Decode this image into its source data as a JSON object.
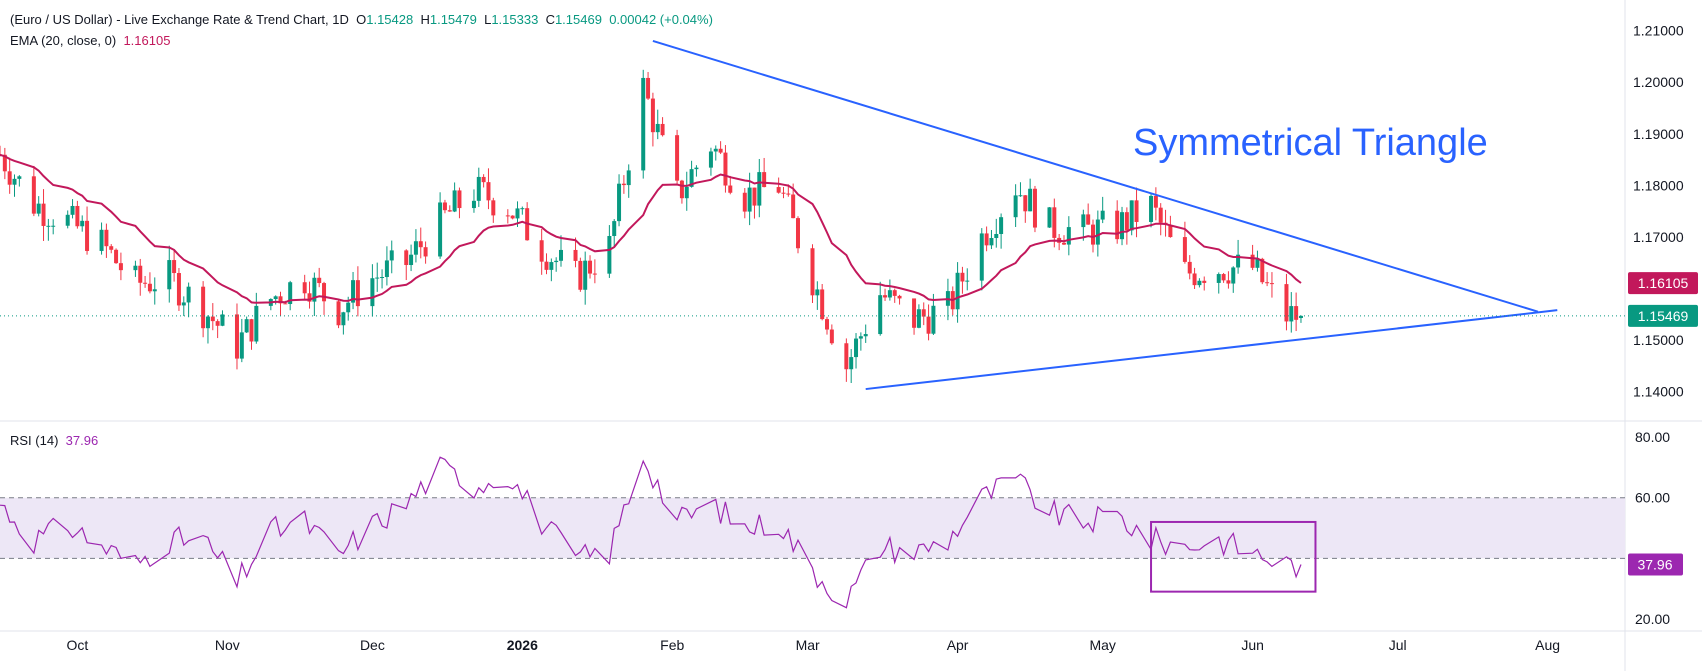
{
  "legend": {
    "symbol": "(Euro / US Dollar) - Live Exchange Rate & Trend Chart, 1D",
    "o_label": "O",
    "o_value": "1.15428",
    "h_label": "H",
    "h_value": "1.15479",
    "l_label": "L",
    "l_value": "1.15333",
    "c_label": "C",
    "c_value": "1.15469",
    "change": "0.00042 (+0.04%)",
    "ema_label": "EMA (20, close, 0)",
    "ema_value": "1.16105",
    "rsi_label": "RSI (14)",
    "rsi_value": "37.96"
  },
  "annotation": "Symmetrical Triangle",
  "badges": {
    "ema": "1.16105",
    "last": "1.15469",
    "rsi": "37.96"
  },
  "colors": {
    "up": "#089981",
    "down": "#f23645",
    "ema": "#c2185b",
    "trendline": "#2962ff",
    "rsi": "#9c27b0",
    "rsi_band": "#ede7f6",
    "grid": "#e0e3eb",
    "text": "#131722"
  },
  "chart_data": [
    {
      "type": "candlestick",
      "y_ticks": [
        "1.21000",
        "1.20000",
        "1.19000",
        "1.18000",
        "1.17000",
        "1.16000",
        "1.15000",
        "1.14000"
      ],
      "ylim": [
        1.1345,
        1.214
      ],
      "x_ticks": [
        {
          "label": "Oct",
          "date": "2025-10-01"
        },
        {
          "label": "Nov",
          "date": "2025-11-01"
        },
        {
          "label": "Dec",
          "date": "2025-12-01"
        },
        {
          "label": "2026",
          "date": "2026-01-01",
          "bold": true
        },
        {
          "label": "Feb",
          "date": "2026-02-01"
        },
        {
          "label": "Mar",
          "date": "2026-03-01"
        },
        {
          "label": "Apr",
          "date": "2026-04-01"
        },
        {
          "label": "May",
          "date": "2026-05-01"
        },
        {
          "label": "Jun",
          "date": "2026-06-01"
        },
        {
          "label": "Jul",
          "date": "2026-07-01"
        },
        {
          "label": "Aug",
          "date": "2026-08-01"
        }
      ],
      "xlim": [
        "2025-09-15",
        "2026-08-17"
      ],
      "trendlines": [
        {
          "name": "upper",
          "points": [
            [
              "2026-01-28",
              1.208
            ],
            [
              "2026-07-30",
              1.1555
            ]
          ]
        },
        {
          "name": "lower",
          "points": [
            [
              "2026-03-13",
              1.1405
            ],
            [
              "2026-08-03",
              1.1558
            ]
          ]
        }
      ],
      "last_price": 1.15469,
      "ema_last": 1.16105,
      "close_series": [
        [
          "2025-09-15",
          1.186
        ],
        [
          "2025-09-22",
          1.1765
        ],
        [
          "2025-09-29",
          1.173
        ],
        [
          "2025-10-06",
          1.1685
        ],
        [
          "2025-10-13",
          1.161
        ],
        [
          "2025-10-20",
          1.162
        ],
        [
          "2025-10-27",
          1.156
        ],
        [
          "2025-11-03",
          1.149
        ],
        [
          "2025-11-10",
          1.158
        ],
        [
          "2025-11-17",
          1.162
        ],
        [
          "2025-11-24",
          1.156
        ],
        [
          "2025-12-01",
          1.162
        ],
        [
          "2025-12-08",
          1.165
        ],
        [
          "2025-12-15",
          1.173
        ],
        [
          "2025-12-22",
          1.179
        ],
        [
          "2025-12-29",
          1.176
        ],
        [
          "2026-01-05",
          1.168
        ],
        [
          "2026-01-12",
          1.162
        ],
        [
          "2026-01-19",
          1.168
        ],
        [
          "2026-01-26",
          1.199
        ],
        [
          "2026-02-02",
          1.178
        ],
        [
          "2026-02-09",
          1.188
        ],
        [
          "2026-02-16",
          1.178
        ],
        [
          "2026-02-23",
          1.18
        ],
        [
          "2026-03-02",
          1.162
        ],
        [
          "2026-03-09",
          1.145
        ],
        [
          "2026-03-16",
          1.159
        ],
        [
          "2026-03-23",
          1.154
        ],
        [
          "2026-03-30",
          1.156
        ],
        [
          "2026-04-06",
          1.17
        ],
        [
          "2026-04-13",
          1.18
        ],
        [
          "2026-04-20",
          1.172
        ],
        [
          "2026-04-27",
          1.171
        ],
        [
          "2026-05-04",
          1.172
        ],
        [
          "2026-05-11",
          1.176
        ],
        [
          "2026-05-18",
          1.163
        ],
        [
          "2026-05-25",
          1.164
        ],
        [
          "2026-06-01",
          1.164
        ],
        [
          "2026-06-08",
          1.1547
        ]
      ]
    },
    {
      "type": "line",
      "title": "RSI (14)",
      "y_ticks": [
        "80.00",
        "60.00",
        "20.00"
      ],
      "ylim": [
        17,
        84
      ],
      "band": [
        40,
        60
      ],
      "last": 37.96,
      "highlight_box": {
        "x": [
          "2026-05-11",
          "2026-06-14"
        ],
        "y": [
          29,
          52
        ]
      },
      "series": [
        [
          "2025-09-15",
          58
        ],
        [
          "2025-09-22",
          46
        ],
        [
          "2025-09-29",
          51
        ],
        [
          "2025-10-06",
          44
        ],
        [
          "2025-10-13",
          38
        ],
        [
          "2025-10-20",
          46
        ],
        [
          "2025-10-27",
          46
        ],
        [
          "2025-11-03",
          32
        ],
        [
          "2025-11-10",
          49
        ],
        [
          "2025-11-17",
          52
        ],
        [
          "2025-11-24",
          41
        ],
        [
          "2025-12-01",
          51
        ],
        [
          "2025-12-08",
          58
        ],
        [
          "2025-12-15",
          70
        ],
        [
          "2025-12-22",
          64
        ],
        [
          "2025-12-29",
          68
        ],
        [
          "2026-01-05",
          52
        ],
        [
          "2026-01-12",
          40
        ],
        [
          "2026-01-19",
          42
        ],
        [
          "2026-01-26",
          74
        ],
        [
          "2026-02-02",
          52
        ],
        [
          "2026-02-09",
          58
        ],
        [
          "2026-02-16",
          50
        ],
        [
          "2026-02-23",
          52
        ],
        [
          "2026-03-02",
          36
        ],
        [
          "2026-03-09",
          26
        ],
        [
          "2026-03-16",
          44
        ],
        [
          "2026-03-23",
          42
        ],
        [
          "2026-03-30",
          46
        ],
        [
          "2026-04-06",
          60
        ],
        [
          "2026-04-13",
          66
        ],
        [
          "2026-04-20",
          55
        ],
        [
          "2026-04-27",
          52
        ],
        [
          "2026-05-04",
          54
        ],
        [
          "2026-05-11",
          46
        ],
        [
          "2026-05-18",
          44
        ],
        [
          "2026-05-25",
          46
        ],
        [
          "2026-06-01",
          42
        ],
        [
          "2026-06-08",
          38
        ]
      ]
    }
  ]
}
